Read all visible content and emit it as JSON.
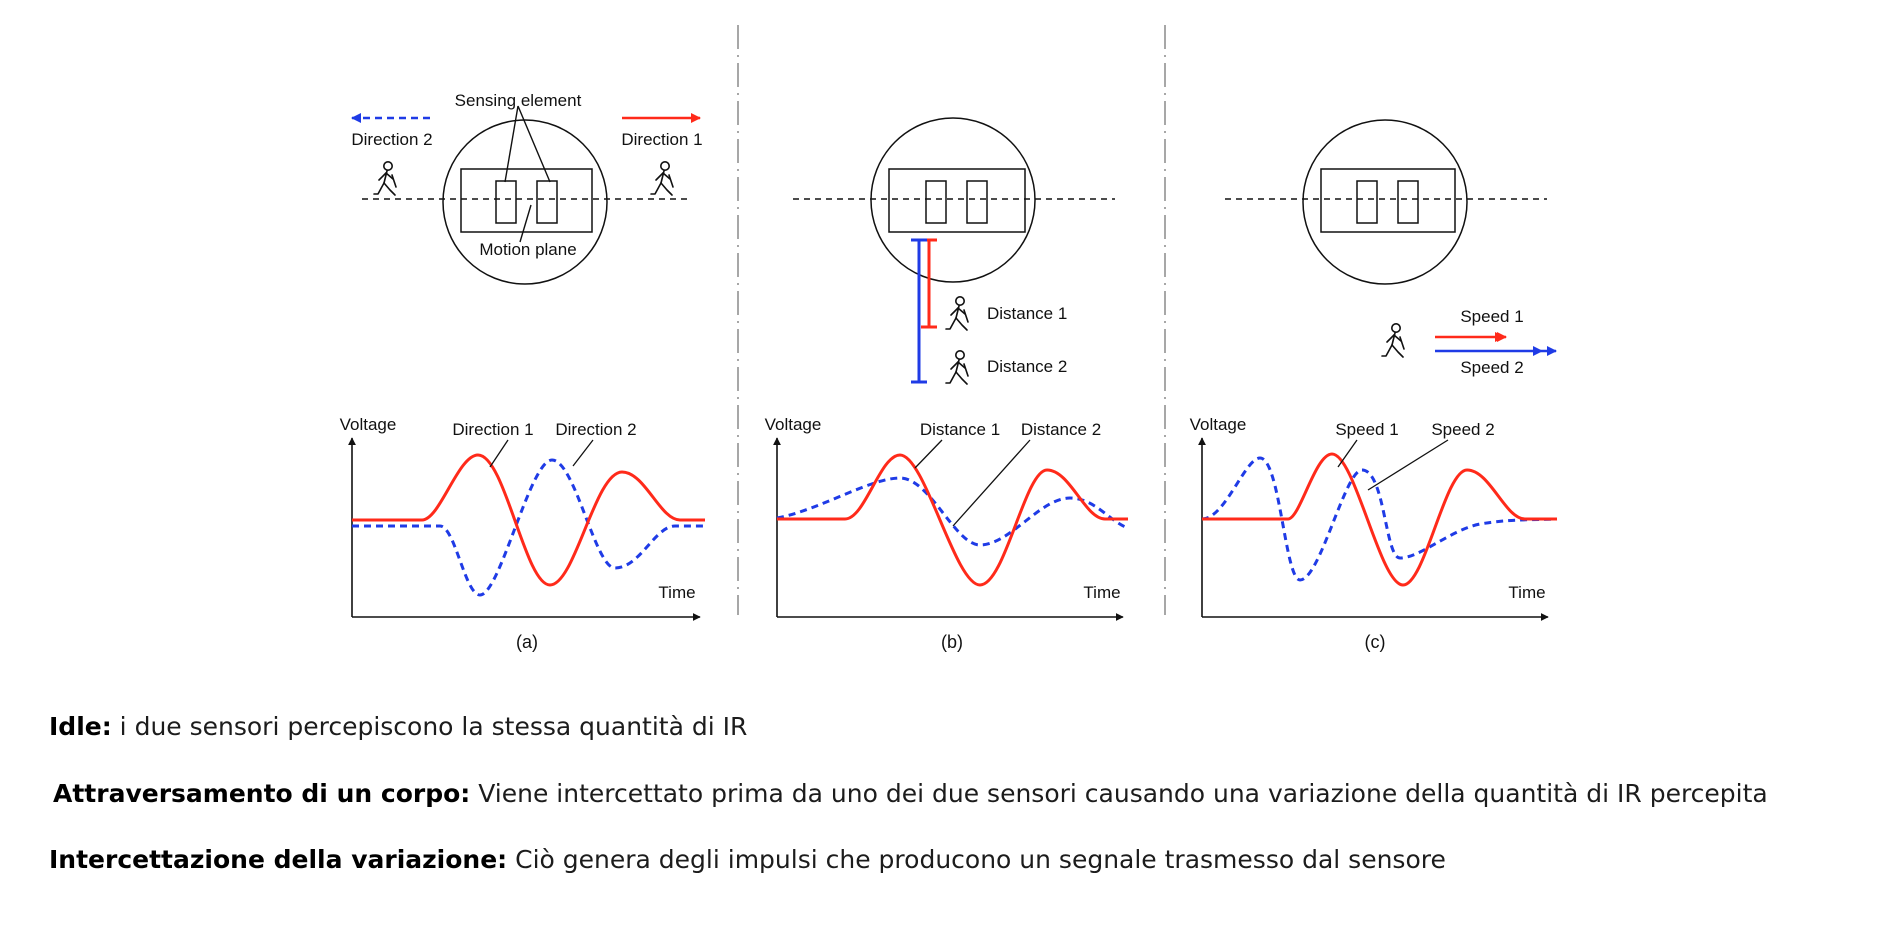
{
  "colors": {
    "series_1": "#ff2a1a",
    "series_2": "#1f3be6",
    "ink": "#111111"
  },
  "icons": [
    "walking-person-icon",
    "arrow-right-icon",
    "arrow-left-icon",
    "double-arrow-icon"
  ],
  "panel_a": {
    "label": "(a)",
    "sensing_element": "Sensing element",
    "motion_plane": "Motion plane",
    "direction_1": "Direction 1",
    "direction_2": "Direction 2",
    "y_axis": "Voltage",
    "x_axis": "Time",
    "curve_1": "Direction 1",
    "curve_2": "Direction 2"
  },
  "panel_b": {
    "label": "(b)",
    "distance_1": "Distance 1",
    "distance_2": "Distance 2",
    "y_axis": "Voltage",
    "x_axis": "Time",
    "curve_1": "Distance 1",
    "curve_2": "Distance 2"
  },
  "panel_c": {
    "label": "(c)",
    "speed_1": "Speed 1",
    "speed_2": "Speed 2",
    "y_axis": "Voltage",
    "x_axis": "Time",
    "curve_1": "Speed 1",
    "curve_2": "Speed 2"
  },
  "captions": [
    {
      "term": "Idle:",
      "text": " i due sensori percepiscono la stessa quantità di IR"
    },
    {
      "term": "Attraversamento di un corpo:",
      "text": " Viene intercettato prima da uno dei due sensori causando una variazione della quantità di IR percepita"
    },
    {
      "term": "Intercettazione della variazione:",
      "text": " Ciò genera degli impulsi che producono un segnale trasmesso dal sensore"
    }
  ]
}
